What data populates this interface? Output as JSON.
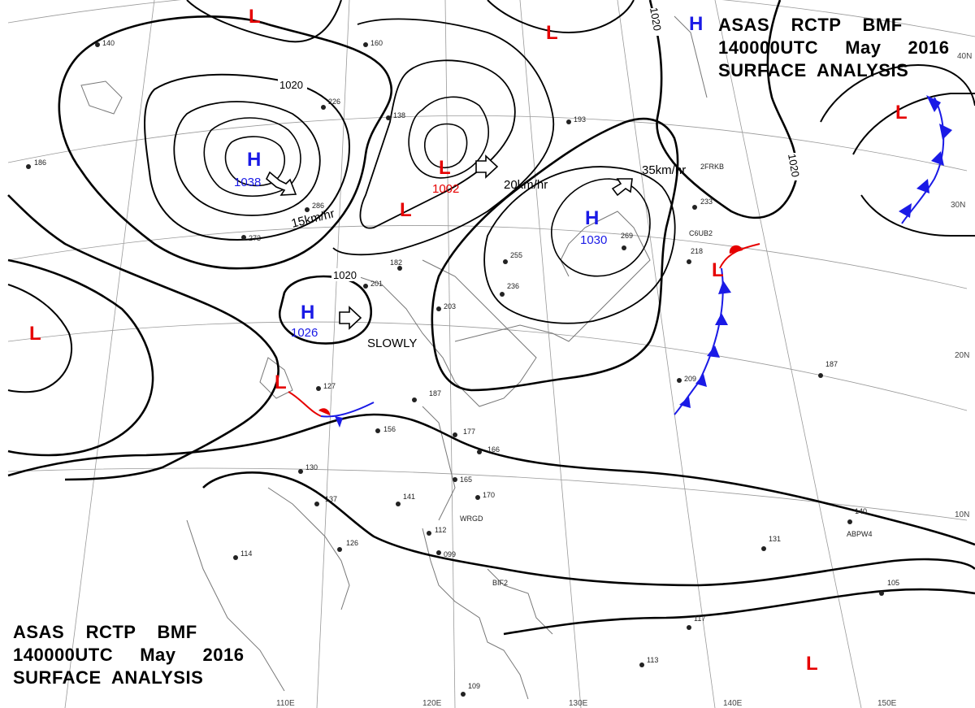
{
  "header_top": {
    "line1": "ASAS    RCTP    BMF",
    "line2": "140000UTC     May     2016",
    "line3": "SURFACE  ANALYSIS"
  },
  "header_bottom": {
    "line1": "ASAS    RCTP    BMF",
    "line2": "140000UTC     May     2016",
    "line3": "SURFACE  ANALYSIS"
  },
  "pressure_centers": [
    {
      "id": "H1",
      "type": "H",
      "value": "1038",
      "color": "#1a1ae6"
    },
    {
      "id": "H2",
      "type": "H",
      "value": "1026",
      "color": "#1a1ae6"
    },
    {
      "id": "H3",
      "type": "H",
      "value": "1030",
      "color": "#1a1ae6"
    },
    {
      "id": "H4",
      "type": "H",
      "value": "",
      "color": "#1a1ae6"
    },
    {
      "id": "L1",
      "type": "L",
      "value": "1002",
      "color": "#e60000"
    },
    {
      "id": "L2",
      "type": "L",
      "value": "",
      "color": "#e60000"
    },
    {
      "id": "L3",
      "type": "L",
      "value": "",
      "color": "#e60000"
    },
    {
      "id": "L4",
      "type": "L",
      "value": "",
      "color": "#e60000"
    },
    {
      "id": "L5",
      "type": "L",
      "value": "",
      "color": "#e60000"
    },
    {
      "id": "L6",
      "type": "L",
      "value": "",
      "color": "#e60000"
    },
    {
      "id": "L7",
      "type": "L",
      "value": "",
      "color": "#e60000"
    },
    {
      "id": "L8",
      "type": "L",
      "value": "",
      "color": "#e60000"
    },
    {
      "id": "L9",
      "type": "L",
      "value": "",
      "color": "#e60000"
    }
  ],
  "isobar_labels": [
    "1020",
    "1020",
    "1020",
    "1020",
    "1020"
  ],
  "movement_labels": [
    "15km/hr",
    "20km/hr",
    "35km/hr",
    "SLOWLY"
  ],
  "latitude_labels": [
    "40N",
    "30N",
    "20N",
    "10N"
  ],
  "longitude_labels": [
    "110E",
    "120E",
    "130E",
    "140E",
    "150E"
  ],
  "station_labels": [
    "2FRKB",
    "C6UB2",
    "WRGD",
    "ABPW4",
    "BIF2"
  ],
  "station_values": [
    "140",
    "160",
    "138",
    "193",
    "233",
    "286",
    "273",
    "182",
    "201",
    "203",
    "187",
    "177",
    "166",
    "165",
    "170",
    "156",
    "141",
    "137",
    "130",
    "126",
    "114",
    "131",
    "105",
    "117",
    "113",
    "109",
    "255",
    "236",
    "226",
    "186",
    "269",
    "218",
    "209",
    "187",
    "140",
    "127",
    "112",
    "099"
  ],
  "colors": {
    "isobar": "#000000",
    "grid": "#888888",
    "coast": "#666666",
    "high": "#1a1ae6",
    "low": "#e60000",
    "cold_front": "#1a1ae6",
    "warm_front": "#e60000"
  }
}
